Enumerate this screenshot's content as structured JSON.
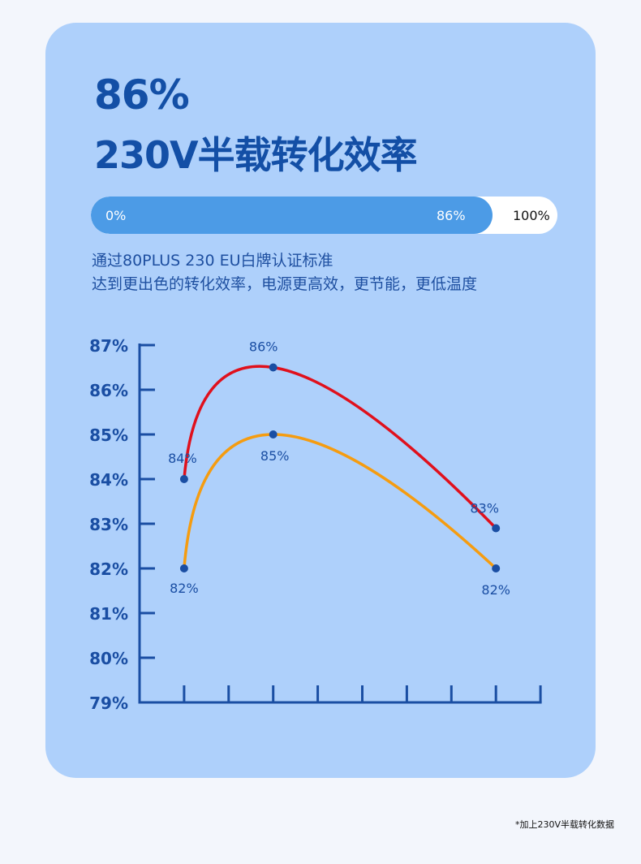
{
  "headline": {
    "value": "86%",
    "subtitle": "230V半载转化效率"
  },
  "progress": {
    "min_label": "0%",
    "current_label": "86%",
    "max_label": "100%",
    "fraction": 0.86,
    "fill_color": "#4c9be6",
    "track_color": "#ffffff"
  },
  "description": {
    "line1": "通过80PLUS 230 EU白牌认证标准",
    "line2": "达到更出色的转化效率，电源更高效，更节能，更低温度"
  },
  "chart_data": {
    "type": "line",
    "yticks": [
      "87%",
      "86%",
      "85%",
      "84%",
      "83%",
      "82%",
      "81%",
      "80%",
      "79%"
    ],
    "ylim": [
      79,
      87
    ],
    "x_tick_count": 9,
    "x": [
      1,
      3,
      8
    ],
    "series": [
      {
        "color": "#e0101c",
        "values": [
          84,
          86.5,
          82.9
        ],
        "labels": [
          "84%",
          "86%",
          "83%"
        ]
      },
      {
        "color": "#f59c10",
        "values": [
          82,
          85,
          82
        ],
        "labels": [
          "82%",
          "85%",
          "82%"
        ]
      }
    ],
    "axis_color": "#1a4ea3",
    "point_color": "#1a4ea3"
  },
  "footnote": "*加上230V半载转化数据"
}
